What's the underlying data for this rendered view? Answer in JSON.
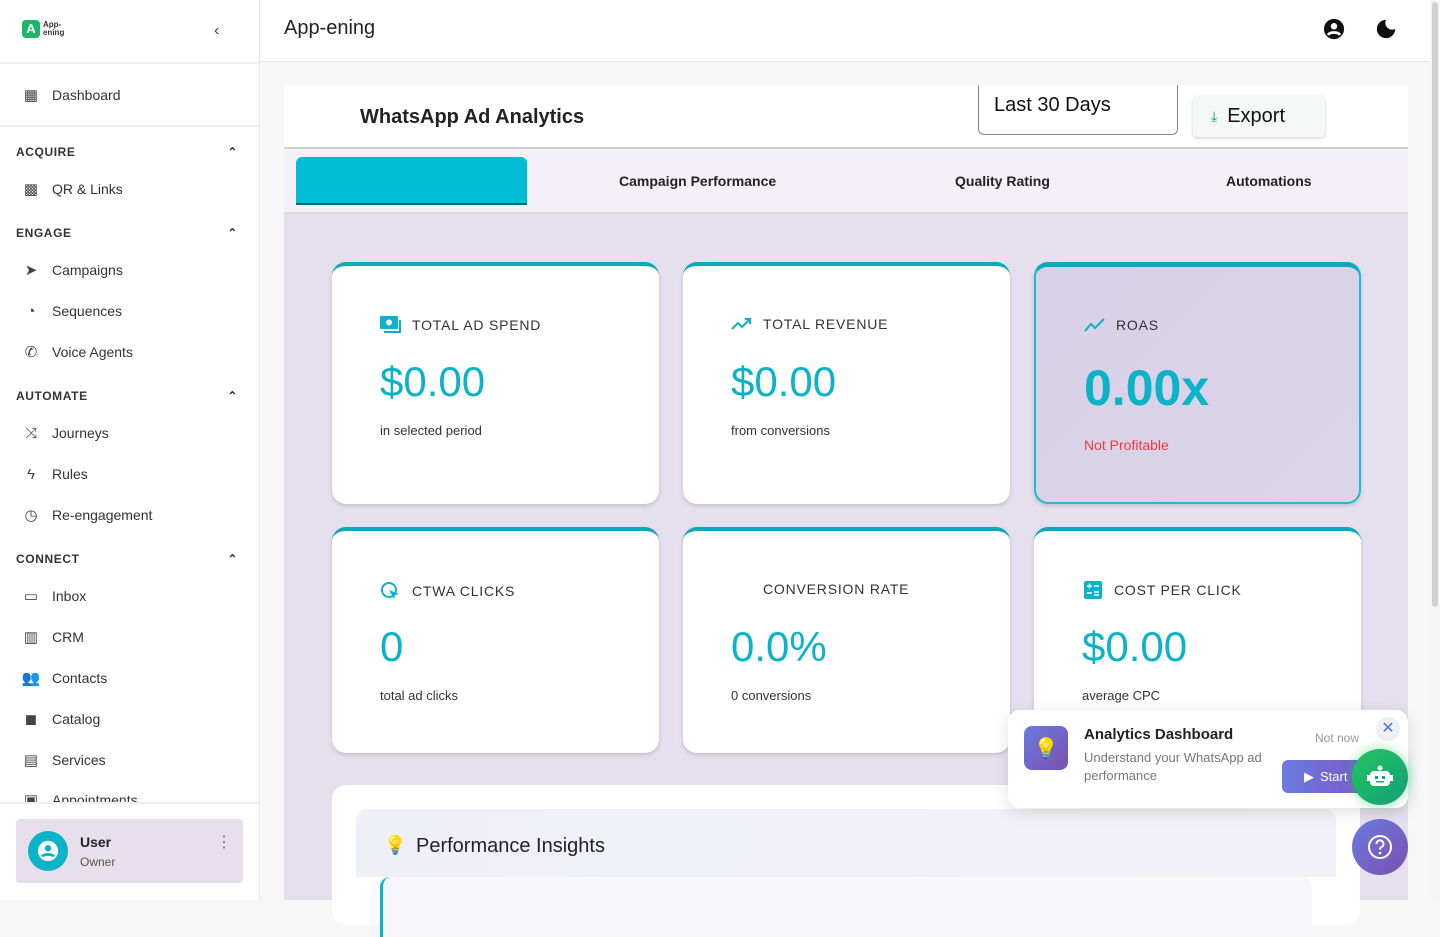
{
  "app": {
    "logo_text": "App-\nening",
    "title": "App-ening"
  },
  "sidebar": {
    "dashboard": "Dashboard",
    "sections": [
      {
        "label": "ACQUIRE",
        "items": [
          "QR & Links"
        ]
      },
      {
        "label": "ENGAGE",
        "items": [
          "Campaigns",
          "Sequences",
          "Voice Agents"
        ]
      },
      {
        "label": "AUTOMATE",
        "items": [
          "Journeys",
          "Rules",
          "Re-engagement"
        ]
      },
      {
        "label": "CONNECT",
        "items": [
          "Inbox",
          "CRM",
          "Contacts",
          "Catalog",
          "Services",
          "Appointments"
        ]
      }
    ],
    "user": {
      "name": "User",
      "role": "Owner"
    }
  },
  "page": {
    "title": "WhatsApp Ad Analytics",
    "date_range": "Last 30 Days",
    "export": "Export"
  },
  "tabs": [
    "",
    "Campaign Performance",
    "Quality Rating",
    "Automations"
  ],
  "colors": {
    "accent": "#0ab3c8",
    "danger": "#f03a3a",
    "purple_bg": "#e6dfed"
  },
  "cards": [
    {
      "label": "TOTAL AD SPEND",
      "value": "$0.00",
      "sub": "in selected period",
      "icon": "payments-icon"
    },
    {
      "label": "TOTAL REVENUE",
      "value": "$0.00",
      "sub": "from conversions",
      "icon": "trending-up-icon"
    },
    {
      "label": "ROAS",
      "value": "0.00x",
      "sub": "Not Profitable",
      "icon": "trending-icon"
    },
    {
      "label": "CTWA CLICKS",
      "value": "0",
      "sub": "total ad clicks",
      "icon": "ads-click-icon"
    },
    {
      "label": "CONVERSION RATE",
      "value": "0.0%",
      "sub": "0 conversions",
      "icon": ""
    },
    {
      "label": "COST PER CLICK",
      "value": "$0.00",
      "sub": "average CPC",
      "icon": "calculate-icon"
    }
  ],
  "insights": {
    "title": "Performance Insights"
  },
  "popup": {
    "title": "Analytics Dashboard",
    "body": "Understand your WhatsApp ad performance",
    "dismiss": "Not now",
    "start": "Start"
  }
}
